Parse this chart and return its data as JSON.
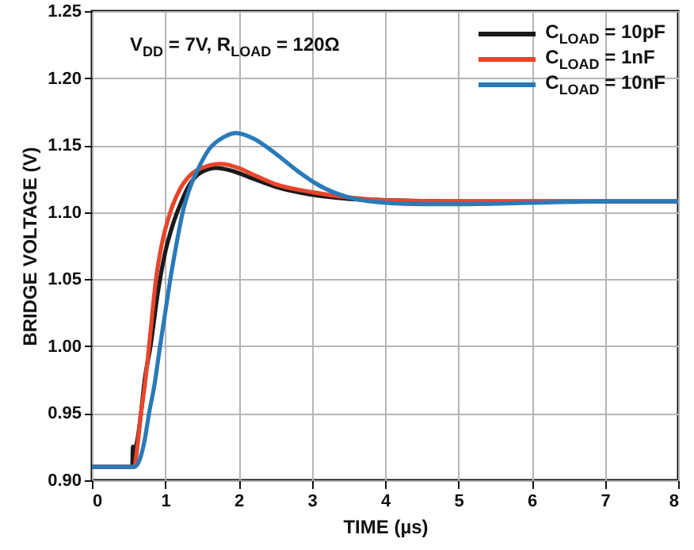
{
  "chart_data": {
    "type": "line",
    "xlabel": "TIME (µs)",
    "ylabel": "BRIDGE VOLTAGE (V)",
    "annotations": [
      "V$_{DD}$ = 7V, R$_{LOAD}$ = 120Ω"
    ],
    "xlim": [
      0,
      8
    ],
    "xticks": [
      0,
      1,
      2,
      3,
      4,
      5,
      6,
      7,
      8
    ],
    "ylim": [
      0.9,
      1.25
    ],
    "yticks": [
      {
        "value": 0.9,
        "label": "0.90"
      },
      0.95,
      {
        "value": 1.0,
        "label": "1.00"
      },
      1.05,
      {
        "value": 1.1,
        "label": "1.10"
      },
      1.15,
      {
        "value": 1.2,
        "label": "1.20"
      },
      1.25
    ],
    "grid": true,
    "legend": "top right",
    "series": [
      {
        "name": "C$_{LOAD}$ = 10pF",
        "color": "#1a1a1a",
        "x": [
          0,
          0.55,
          0.56,
          0.58,
          0.62,
          0.67,
          0.72,
          0.8,
          0.9,
          1.0,
          1.1,
          1.2,
          1.35,
          1.5,
          1.7,
          1.9,
          2.2,
          2.5,
          3,
          3.5,
          4,
          5,
          6,
          7,
          8
        ],
        "values": [
          0.91,
          0.91,
          0.925,
          0.922,
          0.93,
          0.95,
          0.975,
          1.0,
          1.04,
          1.07,
          1.09,
          1.105,
          1.122,
          1.13,
          1.133,
          1.131,
          1.125,
          1.119,
          1.113,
          1.11,
          1.109,
          1.108,
          1.108,
          1.108,
          1.108
        ]
      },
      {
        "name": "C$_{LOAD}$ = 1nF",
        "color": "#e8452c",
        "x": [
          0,
          0.58,
          0.62,
          0.67,
          0.72,
          0.78,
          0.875,
          0.95,
          1.07,
          1.2,
          1.35,
          1.5,
          1.76,
          2.0,
          2.2,
          2.5,
          3,
          3.5,
          4,
          5,
          6,
          7,
          8
        ],
        "values": [
          0.91,
          0.91,
          0.925,
          0.95,
          0.97,
          1.0,
          1.05,
          1.075,
          1.1,
          1.117,
          1.128,
          1.133,
          1.136,
          1.133,
          1.128,
          1.121,
          1.115,
          1.111,
          1.109,
          1.108,
          1.108,
          1.108,
          1.108
        ]
      },
      {
        "name": "C$_{LOAD}$ = 10nF",
        "color": "#2a7ab8",
        "x": [
          0,
          0.58,
          0.65,
          0.72,
          0.78,
          0.85,
          0.93,
          1.0,
          1.07,
          1.15,
          1.24,
          1.35,
          1.43,
          1.6,
          1.8,
          1.97,
          2.2,
          2.5,
          2.8,
          3.1,
          3.5,
          4,
          4.5,
          5,
          6,
          7,
          8
        ],
        "values": [
          0.91,
          0.91,
          0.915,
          0.93,
          0.95,
          0.97,
          1.0,
          1.025,
          1.05,
          1.075,
          1.1,
          1.12,
          1.13,
          1.147,
          1.156,
          1.159,
          1.155,
          1.144,
          1.131,
          1.12,
          1.111,
          1.107,
          1.106,
          1.106,
          1.107,
          1.108,
          1.108
        ]
      }
    ]
  }
}
